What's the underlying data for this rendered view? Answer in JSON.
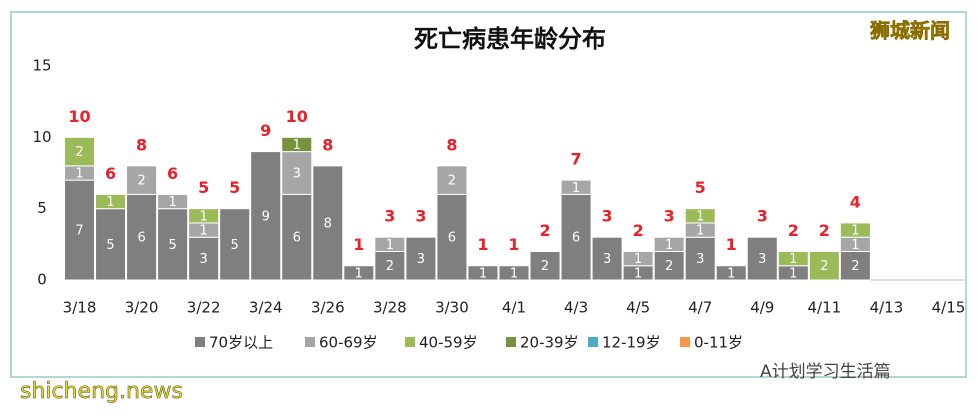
{
  "chart_data": {
    "type": "stacked-bar",
    "title": "死亡病患年龄分布",
    "categories": [
      "3/18",
      null,
      "3/20",
      null,
      "3/22",
      null,
      "3/24",
      null,
      "3/26",
      null,
      "3/28",
      null,
      "3/30",
      null,
      "4/1",
      null,
      "4/3",
      null,
      "4/5",
      null,
      "4/7",
      null,
      "4/9",
      null,
      "4/11",
      null,
      "4/13",
      null,
      "4/15"
    ],
    "series": [
      {
        "name": "70岁以上",
        "color": "#7f7f7f",
        "values": [
          7,
          5,
          6,
          5,
          3,
          5,
          9,
          6,
          8,
          1,
          2,
          3,
          6,
          1,
          1,
          2,
          6,
          3,
          1,
          2,
          3,
          1,
          3,
          1,
          null,
          2,
          null,
          null,
          null
        ]
      },
      {
        "name": "60-69岁",
        "color": "#a6a6a6",
        "values": [
          1,
          null,
          2,
          1,
          1,
          null,
          null,
          3,
          null,
          null,
          1,
          null,
          2,
          null,
          null,
          null,
          1,
          null,
          1,
          1,
          1,
          null,
          null,
          null,
          null,
          1,
          null,
          null,
          null
        ]
      },
      {
        "name": "40-59岁",
        "color": "#9bbb59",
        "values": [
          2,
          1,
          null,
          null,
          1,
          null,
          null,
          null,
          null,
          null,
          null,
          null,
          null,
          null,
          null,
          null,
          null,
          null,
          null,
          null,
          1,
          null,
          null,
          1,
          2,
          1,
          null,
          null,
          null
        ]
      },
      {
        "name": "20-39岁",
        "color": "#76923c",
        "values": [
          null,
          null,
          null,
          null,
          null,
          null,
          null,
          1,
          null,
          null,
          null,
          null,
          null,
          null,
          null,
          null,
          null,
          null,
          null,
          null,
          null,
          null,
          null,
          null,
          null,
          null,
          null,
          null,
          null
        ]
      },
      {
        "name": "12-19岁",
        "color": "#4bacc6",
        "values": [
          null,
          null,
          null,
          null,
          null,
          null,
          null,
          null,
          null,
          null,
          null,
          null,
          null,
          null,
          null,
          null,
          null,
          null,
          null,
          null,
          null,
          null,
          null,
          null,
          null,
          null,
          null,
          null,
          null
        ]
      },
      {
        "name": "0-11岁",
        "color": "#f79646",
        "values": [
          null,
          null,
          null,
          null,
          null,
          null,
          null,
          null,
          null,
          null,
          null,
          null,
          null,
          null,
          null,
          null,
          null,
          null,
          null,
          null,
          null,
          null,
          null,
          null,
          null,
          null,
          null,
          null,
          null
        ]
      }
    ],
    "totals": [
      10,
      6,
      8,
      6,
      5,
      5,
      9,
      10,
      8,
      1,
      3,
      3,
      8,
      1,
      1,
      2,
      7,
      3,
      2,
      3,
      5,
      1,
      3,
      2,
      2,
      4,
      null,
      null,
      null
    ],
    "totals_color": "#e8212b",
    "ylim": [
      0,
      15
    ],
    "yticks": [
      0,
      5,
      10,
      15
    ],
    "grid": false,
    "legend": "bottom"
  },
  "watermarks": {
    "top_right": "狮城新闻",
    "bottom_left": "shicheng.news",
    "bottom_right": "A计划学习生活篇"
  }
}
